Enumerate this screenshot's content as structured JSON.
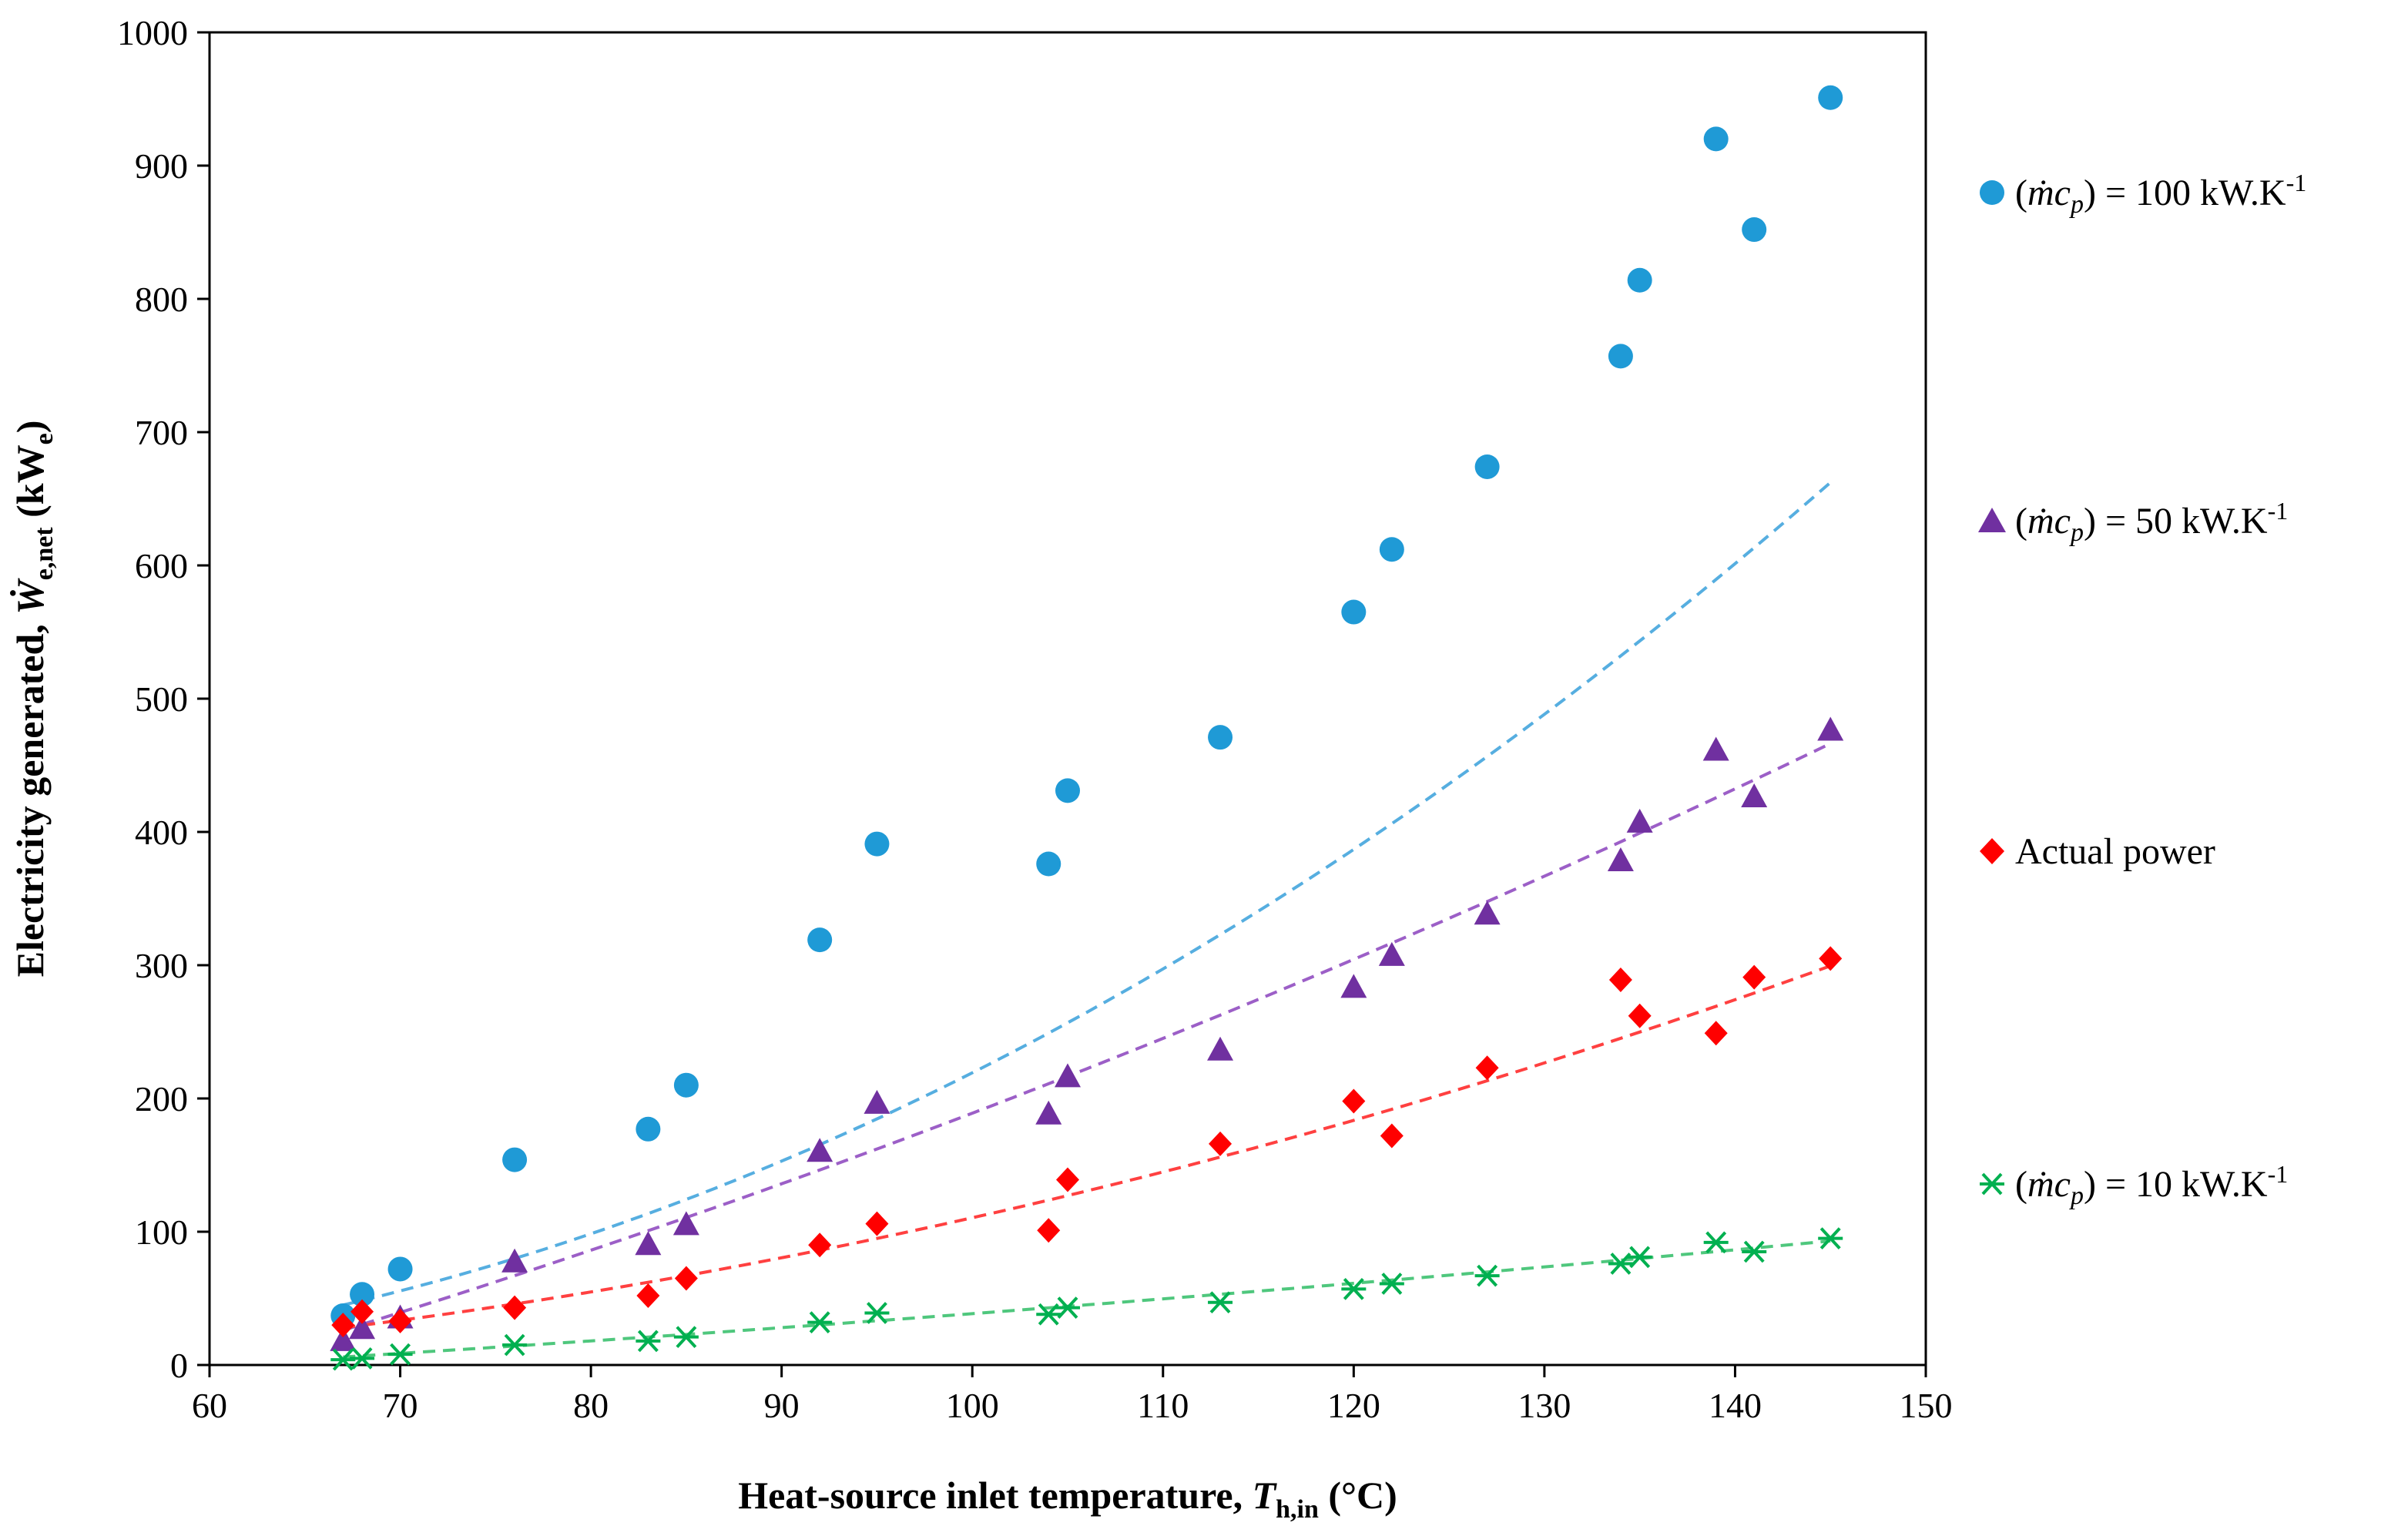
{
  "chart_data": {
    "type": "scatter",
    "title": "",
    "xlabel": {
      "prefix": "Heat-source inlet temperature, ",
      "var": "T",
      "sub": "h,in",
      "suffix": " (°C)"
    },
    "ylabel": {
      "prefix": "Electricity generated, ",
      "var": "Ẇ",
      "sub": "e,net",
      "suffix": " (kW",
      "unit_sub": "e",
      "close": ")"
    },
    "xlim": [
      60,
      150
    ],
    "ylim": [
      0,
      1000
    ],
    "xticks": [
      60,
      70,
      80,
      90,
      100,
      110,
      120,
      130,
      140,
      150
    ],
    "yticks": [
      0,
      100,
      200,
      300,
      400,
      500,
      600,
      700,
      800,
      900,
      1000
    ],
    "grid": false,
    "legend_position": "right",
    "series": [
      {
        "name": "(ṁc_p) = 100 kW.K-1",
        "legend": {
          "lhs": "(",
          "m": "ṁc",
          "p": "p",
          "rhs": ") = 100 kW.K",
          "exp": "-1"
        },
        "marker": "circle",
        "color": "#1f9ad6",
        "trend_color": "#56aee0",
        "x": [
          67,
          68,
          70,
          76,
          83,
          85,
          92,
          95,
          104,
          105,
          113,
          120,
          122,
          127,
          134,
          135,
          139,
          141,
          145
        ],
        "y": [
          37,
          53,
          72,
          154,
          177,
          210,
          319,
          391,
          376,
          431,
          471,
          565,
          612,
          674,
          757,
          814,
          920,
          852,
          951
        ],
        "trend": [
          67,
          145,
          0.0585,
          3.35,
          45.0
        ]
      },
      {
        "name": "(ṁc_p) = 50 kW.K-1",
        "legend": {
          "lhs": "(",
          "m": "ṁc",
          "p": "p",
          "rhs": ") = 50 kW.K",
          "exp": "-1"
        },
        "marker": "triangle",
        "color": "#7030a0",
        "trend_color": "#9c5fc7",
        "x": [
          67,
          68,
          70,
          76,
          83,
          85,
          92,
          95,
          104,
          105,
          113,
          120,
          122,
          127,
          134,
          135,
          139,
          141,
          145
        ],
        "y": [
          18,
          27,
          35,
          77,
          90,
          105,
          160,
          196,
          188,
          216,
          236,
          283,
          307,
          338,
          378,
          407,
          461,
          426,
          476
        ],
        "trend": [
          67,
          145,
          0.0157,
          4.42,
          26.0
        ]
      },
      {
        "name": "Actual power",
        "legend": {
          "text": "Actual power"
        },
        "marker": "diamond",
        "color": "#ff0000",
        "trend_color": "#ff4040",
        "x": [
          67,
          68,
          70,
          76,
          83,
          85,
          92,
          95,
          104,
          105,
          113,
          120,
          122,
          127,
          134,
          135,
          139,
          141,
          145
        ],
        "y": [
          30,
          40,
          33,
          43,
          52,
          65,
          90,
          106,
          101,
          139,
          166,
          198,
          172,
          223,
          289,
          262,
          249,
          291,
          305
        ],
        "trend": [
          67,
          145,
          0.0218,
          1.78,
          28.0
        ]
      },
      {
        "name": "(ṁc_p) = 10 kW.K-1",
        "legend": {
          "lhs": "(",
          "m": "ṁc",
          "p": "p",
          "rhs": ") = 10 kW.K",
          "exp": "-1"
        },
        "marker": "asterisk",
        "color": "#00b050",
        "trend_color": "#4fc77d",
        "x": [
          67,
          68,
          70,
          76,
          83,
          85,
          92,
          95,
          104,
          105,
          113,
          120,
          122,
          127,
          134,
          135,
          139,
          141,
          145
        ],
        "y": [
          4,
          5,
          8,
          15,
          18,
          21,
          32,
          39,
          38,
          43,
          47,
          57,
          61,
          67,
          76,
          81,
          92,
          85,
          95
        ],
        "trend": [
          67,
          145,
          0.0029,
          0.89,
          6.0
        ]
      }
    ]
  }
}
